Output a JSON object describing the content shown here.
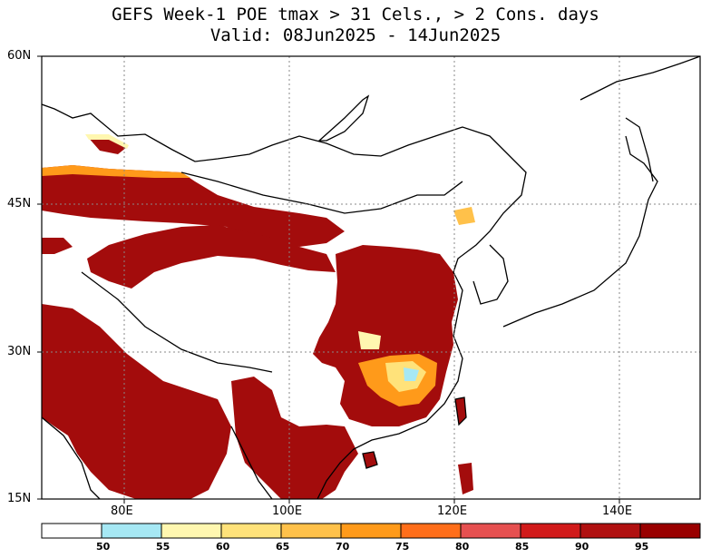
{
  "title_line1": "GEFS Week-1 POE tmax > 31 Cels., > 2 Cons. days",
  "title_line2": "Valid: 08Jun2025 - 14Jun2025",
  "lat_labels": [
    "60N",
    "45N",
    "30N",
    "15N"
  ],
  "lon_labels": [
    "80E",
    "100E",
    "120E",
    "140E"
  ],
  "colorbar": {
    "labels": [
      "50",
      "55",
      "60",
      "65",
      "70",
      "75",
      "80",
      "85",
      "90",
      "95"
    ],
    "colors": [
      "#ffffff",
      "#a6e8f4",
      "#fff7b0",
      "#ffe27a",
      "#ffc14a",
      "#ff9a1a",
      "#ff6e1a",
      "#e65050",
      "#d11a1a",
      "#b01010",
      "#990000"
    ]
  }
}
